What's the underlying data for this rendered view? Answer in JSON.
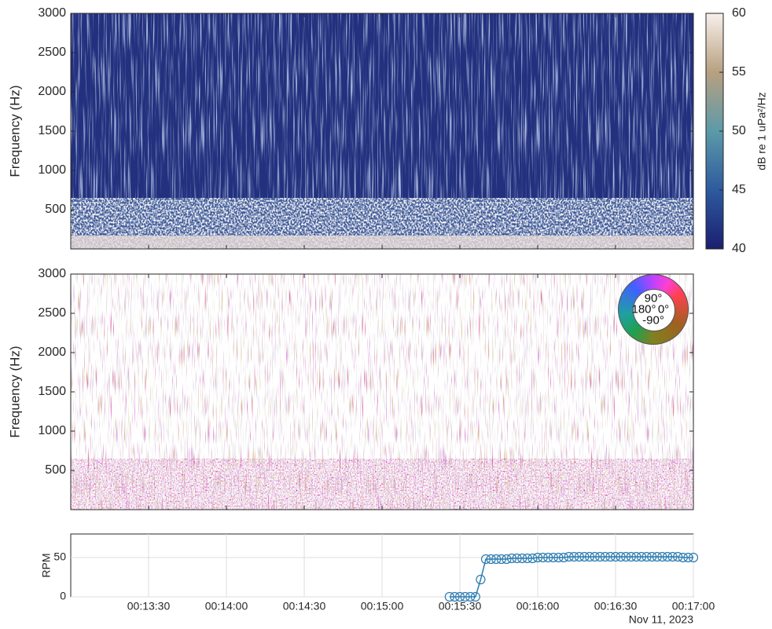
{
  "chart_data": [
    {
      "type": "spectrogram",
      "y_label": "Frequency (Hz)",
      "ylim": [
        0,
        3000
      ],
      "yticks": [
        500,
        1000,
        1500,
        2000,
        2500,
        3000
      ],
      "colorbar": {
        "label": "dB re 1 uPa²/Hz",
        "lim": [
          40,
          60
        ],
        "ticks": [
          40,
          45,
          50,
          55,
          60
        ]
      }
    },
    {
      "type": "phase-spectrogram",
      "y_label": "Frequency (Hz)",
      "ylim": [
        0,
        3000
      ],
      "yticks": [
        500,
        1000,
        1500,
        2000,
        2500,
        3000
      ],
      "colorwheel_labels": [
        "90°",
        "180°",
        "0°",
        "-90°"
      ]
    },
    {
      "type": "line",
      "y_label": "RPM",
      "date_label": "Nov 11, 2023",
      "grid": true,
      "xlim": [
        "00:13:00",
        "00:17:00"
      ],
      "xticks": [
        "00:13:30",
        "00:14:00",
        "00:14:30",
        "00:15:00",
        "00:15:30",
        "00:16:00",
        "00:16:30",
        "00:17:00"
      ],
      "ylim": [
        0,
        80
      ],
      "yticks": [
        0,
        50
      ],
      "x": [
        "00:15:26",
        "00:15:28",
        "00:15:30",
        "00:15:32",
        "00:15:34",
        "00:15:36",
        "00:15:38",
        "00:15:40",
        "00:15:42",
        "00:15:44",
        "00:15:46",
        "00:15:48",
        "00:15:50",
        "00:15:52",
        "00:15:54",
        "00:15:56",
        "00:15:58",
        "00:16:00",
        "00:16:02",
        "00:16:04",
        "00:16:06",
        "00:16:08",
        "00:16:10",
        "00:16:12",
        "00:16:14",
        "00:16:16",
        "00:16:18",
        "00:16:20",
        "00:16:22",
        "00:16:24",
        "00:16:26",
        "00:16:28",
        "00:16:30",
        "00:16:32",
        "00:16:34",
        "00:16:36",
        "00:16:38",
        "00:16:40",
        "00:16:42",
        "00:16:44",
        "00:16:46",
        "00:16:48",
        "00:16:50",
        "00:16:52",
        "00:16:54",
        "00:16:56",
        "00:16:58",
        "00:17:00"
      ],
      "series": [
        {
          "name": "RPM",
          "color": "#2b7bb0",
          "values": [
            0,
            0,
            0,
            0,
            0,
            0,
            22,
            48,
            48,
            48,
            48,
            48,
            49,
            49,
            49,
            49,
            49,
            50,
            50,
            50,
            50,
            50,
            50,
            51,
            51,
            51,
            51,
            51,
            51,
            51,
            51,
            51,
            51,
            51,
            51,
            51,
            51,
            51,
            51,
            51,
            51,
            51,
            51,
            51,
            51,
            50,
            50,
            50
          ]
        }
      ]
    }
  ]
}
